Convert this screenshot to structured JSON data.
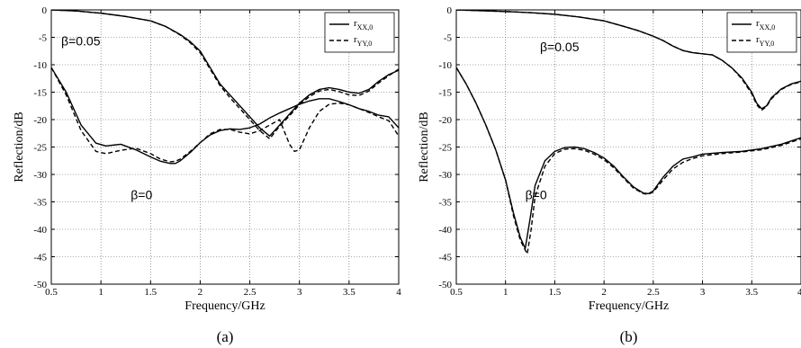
{
  "chart_data": [
    {
      "type": "line",
      "panel_label": "(a)",
      "xlabel": "Frequency/GHz",
      "ylabel": "Reflection/dB",
      "xlim": [
        0.5,
        4
      ],
      "ylim": [
        -50,
        0
      ],
      "xticks": [
        0.5,
        1,
        1.5,
        2,
        2.5,
        3,
        3.5,
        4
      ],
      "yticks": [
        0,
        -5,
        -10,
        -15,
        -20,
        -25,
        -30,
        -35,
        -40,
        -45,
        -50
      ],
      "grid": true,
      "legend_position": "top-right",
      "legend": [
        {
          "main": "r",
          "sub": "XX,0",
          "style": "solid"
        },
        {
          "main": "r",
          "sub": "YY,0",
          "style": "dashed"
        }
      ],
      "annotations": [
        {
          "text": "β=0.05",
          "x": 0.6,
          "y": -6.5
        },
        {
          "text": "β=0",
          "x": 1.3,
          "y": -34.5
        }
      ],
      "series": [
        {
          "style": "solid",
          "x": [
            0.5,
            0.75,
            1.0,
            1.25,
            1.5,
            1.65,
            1.8,
            1.9,
            2.0,
            2.1,
            2.2,
            2.3,
            2.4,
            2.5,
            2.6,
            2.7,
            2.8,
            2.9,
            3.0,
            3.1,
            3.2,
            3.3,
            3.4,
            3.5,
            3.6,
            3.7,
            3.8,
            3.9,
            4.0
          ],
          "y": [
            0,
            -0.2,
            -0.6,
            -1.2,
            -2.0,
            -3.0,
            -4.5,
            -5.8,
            -7.5,
            -10.5,
            -13.5,
            -15.5,
            -17.5,
            -19.5,
            -21.5,
            -23.0,
            -21.0,
            -19.0,
            -17.0,
            -15.5,
            -14.5,
            -14.2,
            -14.5,
            -15.0,
            -15.2,
            -14.5,
            -13.0,
            -11.8,
            -11.0
          ]
        },
        {
          "style": "dashed",
          "x": [
            0.5,
            0.75,
            1.0,
            1.25,
            1.5,
            1.65,
            1.8,
            1.9,
            2.0,
            2.1,
            2.2,
            2.3,
            2.4,
            2.5,
            2.6,
            2.7,
            2.8,
            2.9,
            3.0,
            3.1,
            3.2,
            3.3,
            3.4,
            3.5,
            3.6,
            3.7,
            3.8,
            3.9,
            4.0
          ],
          "y": [
            0,
            -0.2,
            -0.6,
            -1.2,
            -2.0,
            -3.0,
            -4.6,
            -6.0,
            -7.8,
            -10.8,
            -13.8,
            -16.0,
            -18.0,
            -20.0,
            -22.0,
            -23.5,
            -21.2,
            -19.3,
            -17.3,
            -15.8,
            -14.8,
            -14.5,
            -14.9,
            -15.5,
            -15.6,
            -14.8,
            -13.3,
            -12.0,
            -10.8
          ]
        },
        {
          "style": "solid",
          "x": [
            0.5,
            0.65,
            0.8,
            0.95,
            1.05,
            1.2,
            1.35,
            1.5,
            1.6,
            1.7,
            1.75,
            1.8,
            1.9,
            2.0,
            2.1,
            2.2,
            2.3,
            2.4,
            2.5,
            2.6,
            2.7,
            2.8,
            2.9,
            3.0,
            3.1,
            3.2,
            3.3,
            3.4,
            3.5,
            3.6,
            3.7,
            3.8,
            3.9,
            4.0
          ],
          "y": [
            -10.5,
            -15,
            -21,
            -24.3,
            -24.8,
            -24.5,
            -25.5,
            -26.8,
            -27.6,
            -28,
            -28,
            -27.5,
            -26,
            -24.2,
            -22.8,
            -22,
            -21.7,
            -21.8,
            -21.5,
            -20.8,
            -19.7,
            -18.8,
            -18,
            -17.2,
            -16.6,
            -16.2,
            -16.2,
            -16.7,
            -17.3,
            -18,
            -18.5,
            -19.2,
            -19.5,
            -21.5
          ]
        },
        {
          "style": "dashed",
          "x": [
            0.5,
            0.65,
            0.8,
            0.95,
            1.05,
            1.2,
            1.35,
            1.5,
            1.6,
            1.7,
            1.75,
            1.8,
            1.9,
            2.0,
            2.1,
            2.2,
            2.3,
            2.4,
            2.5,
            2.6,
            2.7,
            2.8,
            2.9,
            2.95,
            3.0,
            3.1,
            3.2,
            3.3,
            3.4,
            3.5,
            3.6,
            3.7,
            3.8,
            3.9,
            4.0
          ],
          "y": [
            -10.5,
            -15.5,
            -22,
            -25.8,
            -26.2,
            -25.6,
            -25.2,
            -26.2,
            -27.2,
            -27.7,
            -27.6,
            -27.2,
            -25.8,
            -24.2,
            -22.6,
            -21.8,
            -21.8,
            -22.3,
            -22.6,
            -22,
            -21,
            -20,
            -24.5,
            -25.8,
            -25.5,
            -21.5,
            -18.5,
            -17.2,
            -17,
            -17.3,
            -18,
            -18.7,
            -19.5,
            -20.2,
            -23
          ]
        }
      ]
    },
    {
      "type": "line",
      "panel_label": "(b)",
      "xlabel": "Frequency/GHz",
      "ylabel": "Reflection/dB",
      "xlim": [
        0.5,
        4
      ],
      "ylim": [
        -50,
        0
      ],
      "xticks": [
        0.5,
        1,
        1.5,
        2,
        2.5,
        3,
        3.5,
        4
      ],
      "yticks": [
        0,
        -5,
        -10,
        -15,
        -20,
        -25,
        -30,
        -35,
        -40,
        -45,
        -50
      ],
      "grid": true,
      "legend_position": "top-right",
      "legend": [
        {
          "main": "r",
          "sub": "XX,0",
          "style": "solid"
        },
        {
          "main": "r",
          "sub": "YY,0",
          "style": "dashed"
        }
      ],
      "annotations": [
        {
          "text": "β=0.05",
          "x": 1.35,
          "y": -7.5
        },
        {
          "text": "β=0",
          "x": 1.2,
          "y": -34.5
        }
      ],
      "series": [
        {
          "style": "solid",
          "x": [
            0.5,
            0.75,
            1.0,
            1.25,
            1.5,
            1.75,
            2.0,
            2.2,
            2.35,
            2.5,
            2.6,
            2.7,
            2.8,
            2.9,
            3.0,
            3.1,
            3.2,
            3.3,
            3.4,
            3.5,
            3.55,
            3.6,
            3.65,
            3.7,
            3.8,
            3.9,
            4.0
          ],
          "y": [
            0,
            -0.15,
            -0.3,
            -0.5,
            -0.8,
            -1.3,
            -2.0,
            -3.0,
            -3.8,
            -4.8,
            -5.6,
            -6.6,
            -7.4,
            -7.8,
            -8.0,
            -8.2,
            -9.2,
            -10.6,
            -12.4,
            -15.0,
            -17.0,
            -18.0,
            -17.5,
            -16.0,
            -14.4,
            -13.5,
            -13.0
          ]
        },
        {
          "style": "dashed",
          "x": [
            0.5,
            0.75,
            1.0,
            1.25,
            1.5,
            1.75,
            2.0,
            2.2,
            2.35,
            2.5,
            2.6,
            2.7,
            2.8,
            2.9,
            3.0,
            3.1,
            3.2,
            3.3,
            3.4,
            3.5,
            3.55,
            3.6,
            3.65,
            3.7,
            3.8,
            3.9,
            4.0
          ],
          "y": [
            0,
            -0.15,
            -0.3,
            -0.5,
            -0.8,
            -1.3,
            -2.0,
            -3.0,
            -3.8,
            -4.8,
            -5.6,
            -6.6,
            -7.4,
            -7.8,
            -8.0,
            -8.2,
            -9.2,
            -10.6,
            -12.6,
            -15.3,
            -17.3,
            -18.3,
            -17.6,
            -16.2,
            -14.5,
            -13.6,
            -13.1
          ]
        },
        {
          "style": "solid",
          "x": [
            0.5,
            0.6,
            0.7,
            0.8,
            0.9,
            1.0,
            1.08,
            1.15,
            1.2,
            1.25,
            1.3,
            1.4,
            1.5,
            1.6,
            1.7,
            1.8,
            1.9,
            2.0,
            2.1,
            2.2,
            2.3,
            2.4,
            2.45,
            2.5,
            2.6,
            2.7,
            2.8,
            2.9,
            3.0,
            3.2,
            3.4,
            3.6,
            3.8,
            4.0
          ],
          "y": [
            -10.5,
            -13.5,
            -17,
            -21,
            -25.5,
            -31,
            -37,
            -41.5,
            -43.5,
            -38,
            -32,
            -27.5,
            -25.8,
            -25.1,
            -25,
            -25.3,
            -26,
            -27,
            -28.5,
            -30.5,
            -32.3,
            -33.4,
            -33.5,
            -33,
            -30.5,
            -28.5,
            -27.2,
            -26.8,
            -26.3,
            -26,
            -25.8,
            -25.3,
            -24.5,
            -23.3
          ]
        },
        {
          "style": "dashed",
          "x": [
            0.5,
            0.6,
            0.7,
            0.8,
            0.9,
            1.0,
            1.08,
            1.15,
            1.22,
            1.26,
            1.3,
            1.4,
            1.5,
            1.6,
            1.7,
            1.8,
            1.9,
            2.0,
            2.1,
            2.2,
            2.3,
            2.4,
            2.45,
            2.5,
            2.6,
            2.7,
            2.8,
            2.9,
            3.0,
            3.2,
            3.4,
            3.6,
            3.8,
            4.0
          ],
          "y": [
            -10.5,
            -13.5,
            -17,
            -21,
            -25.5,
            -31,
            -37.5,
            -42,
            -44.5,
            -40,
            -34,
            -28.5,
            -26.2,
            -25.4,
            -25.3,
            -25.6,
            -26.3,
            -27.3,
            -28.8,
            -30.7,
            -32.5,
            -33.5,
            -33.6,
            -33.2,
            -31,
            -29,
            -27.8,
            -27.1,
            -26.6,
            -26.2,
            -25.9,
            -25.5,
            -24.7,
            -23.5
          ]
        }
      ]
    }
  ]
}
